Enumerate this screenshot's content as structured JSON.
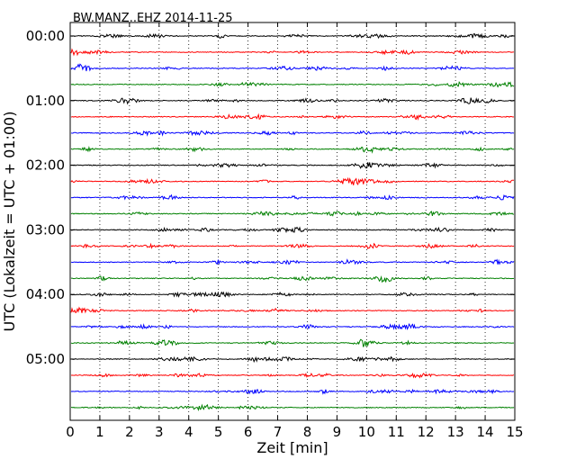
{
  "chart_data": {
    "type": "line",
    "title": "BW.MANZ..EHZ 2014-11-25",
    "xlabel": "Zeit  [min]",
    "ylabel": "UTC (Lokalzeit = UTC + 01:00)",
    "xlim": [
      0,
      15
    ],
    "x_ticks": [
      "0",
      "1",
      "2",
      "3",
      "4",
      "5",
      "6",
      "7",
      "8",
      "9",
      "10",
      "11",
      "12",
      "13",
      "14",
      "15"
    ],
    "y_tick_labels": [
      "00:00",
      "01:00",
      "02:00",
      "03:00",
      "04:00",
      "05:00"
    ],
    "traces_per_hour": 4,
    "trace_count": 24,
    "trace_colors": [
      "#000000",
      "#ff0000",
      "#0000ff",
      "#008000"
    ],
    "grid": "vertical dotted at each minute",
    "series": [
      {
        "start": "00:00",
        "color": "#000000"
      },
      {
        "start": "00:15",
        "color": "#ff0000"
      },
      {
        "start": "00:30",
        "color": "#0000ff"
      },
      {
        "start": "00:45",
        "color": "#008000"
      },
      {
        "start": "01:00",
        "color": "#000000"
      },
      {
        "start": "01:15",
        "color": "#ff0000"
      },
      {
        "start": "01:30",
        "color": "#0000ff"
      },
      {
        "start": "01:45",
        "color": "#008000"
      },
      {
        "start": "02:00",
        "color": "#000000"
      },
      {
        "start": "02:15",
        "color": "#ff0000"
      },
      {
        "start": "02:30",
        "color": "#0000ff"
      },
      {
        "start": "02:45",
        "color": "#008000"
      },
      {
        "start": "03:00",
        "color": "#000000"
      },
      {
        "start": "03:15",
        "color": "#ff0000"
      },
      {
        "start": "03:30",
        "color": "#0000ff"
      },
      {
        "start": "03:45",
        "color": "#008000"
      },
      {
        "start": "04:00",
        "color": "#000000"
      },
      {
        "start": "04:15",
        "color": "#ff0000"
      },
      {
        "start": "04:30",
        "color": "#0000ff"
      },
      {
        "start": "04:45",
        "color": "#008000"
      },
      {
        "start": "05:00",
        "color": "#000000"
      },
      {
        "start": "05:15",
        "color": "#ff0000"
      },
      {
        "start": "05:30",
        "color": "#0000ff"
      },
      {
        "start": "05:45",
        "color": "#008000"
      }
    ]
  }
}
